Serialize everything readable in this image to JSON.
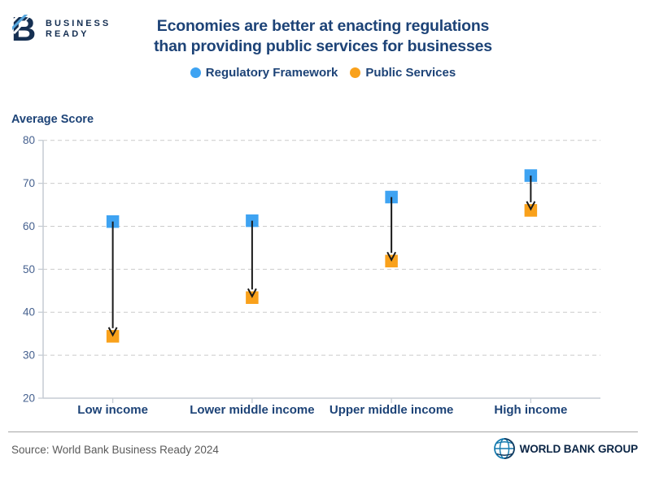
{
  "brand": {
    "logo_line1": "BUSINESS",
    "logo_line2": "READY"
  },
  "title": {
    "line1": "Economies are better at enacting regulations",
    "line2": "than providing public services for businesses"
  },
  "legend": {
    "items": [
      {
        "label": "Regulatory Framework",
        "color": "#3EA3F2"
      },
      {
        "label": "Public Services",
        "color": "#F9A11B"
      }
    ]
  },
  "axis": {
    "ylabel": "Average Score"
  },
  "chart_data": {
    "type": "scatter",
    "subtype": "dumbbell-arrow",
    "title": "Economies are better at enacting regulations than providing public services for businesses",
    "ylabel": "Average Score",
    "ylim": [
      20,
      80
    ],
    "yticks": [
      20,
      30,
      40,
      50,
      60,
      70,
      80
    ],
    "categories": [
      "Low income",
      "Lower middle income",
      "Upper middle income",
      "High income"
    ],
    "series": [
      {
        "name": "Regulatory Framework",
        "marker": "square",
        "color": "#3EA3F2",
        "values": [
          61.1,
          61.3,
          66.8,
          71.8
        ]
      },
      {
        "name": "Public Services",
        "marker": "square",
        "color": "#F9A11B",
        "values": [
          34.4,
          43.4,
          51.9,
          63.7
        ]
      }
    ],
    "annotations": "black arrow in each category points down from Regulatory Framework score to Public Services score",
    "grid": "horizontal dashed",
    "legend_position": "top-center"
  },
  "footer": {
    "source": "Source: World Bank Business Ready 2024",
    "brand": "WORLD BANK GROUP"
  },
  "colors": {
    "navy_text": "#1D4377",
    "logo_navy": "#152F52",
    "tick_label": "#46618F",
    "grid": "#CBCBCB",
    "axis_line": "#C5CCD4",
    "arrow": "#1A1A1A",
    "source_text": "#5A5A5A",
    "wbg_navy": "#0B2545",
    "stripe_light_blue": "#57A7DE",
    "stripe_blue": "#2F7CC0"
  }
}
